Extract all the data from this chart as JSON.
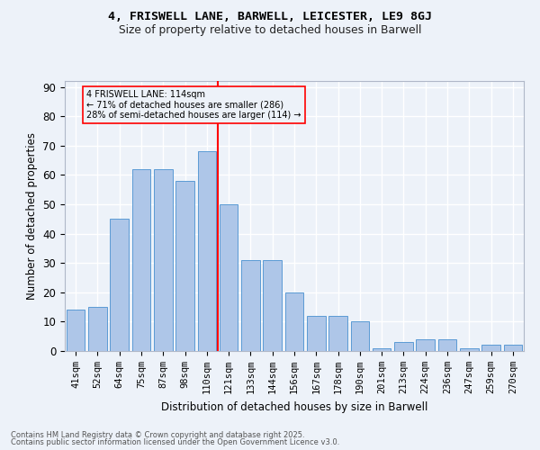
{
  "title1": "4, FRISWELL LANE, BARWELL, LEICESTER, LE9 8GJ",
  "title2": "Size of property relative to detached houses in Barwell",
  "xlabel": "Distribution of detached houses by size in Barwell",
  "ylabel": "Number of detached properties",
  "categories": [
    "41sqm",
    "52sqm",
    "64sqm",
    "75sqm",
    "87sqm",
    "98sqm",
    "110sqm",
    "121sqm",
    "133sqm",
    "144sqm",
    "156sqm",
    "167sqm",
    "178sqm",
    "190sqm",
    "201sqm",
    "213sqm",
    "224sqm",
    "236sqm",
    "247sqm",
    "259sqm",
    "270sqm"
  ],
  "values": [
    14,
    15,
    45,
    62,
    62,
    58,
    68,
    50,
    31,
    31,
    20,
    12,
    12,
    10,
    1,
    3,
    4,
    4,
    1,
    2,
    2
  ],
  "bar_color": "#aec6e8",
  "bar_edge_color": "#5b9bd5",
  "vline_x_index": 6.5,
  "vline_color": "red",
  "annotation_title": "4 FRISWELL LANE: 114sqm",
  "annotation_line1": "← 71% of detached houses are smaller (286)",
  "annotation_line2": "28% of semi-detached houses are larger (114) →",
  "annotation_box_color": "red",
  "annotation_text_color": "black",
  "ylim": [
    0,
    92
  ],
  "yticks": [
    0,
    10,
    20,
    30,
    40,
    50,
    60,
    70,
    80,
    90
  ],
  "footer1": "Contains HM Land Registry data © Crown copyright and database right 2025.",
  "footer2": "Contains public sector information licensed under the Open Government Licence v3.0.",
  "bg_color": "#edf2f9",
  "grid_color": "#ffffff"
}
